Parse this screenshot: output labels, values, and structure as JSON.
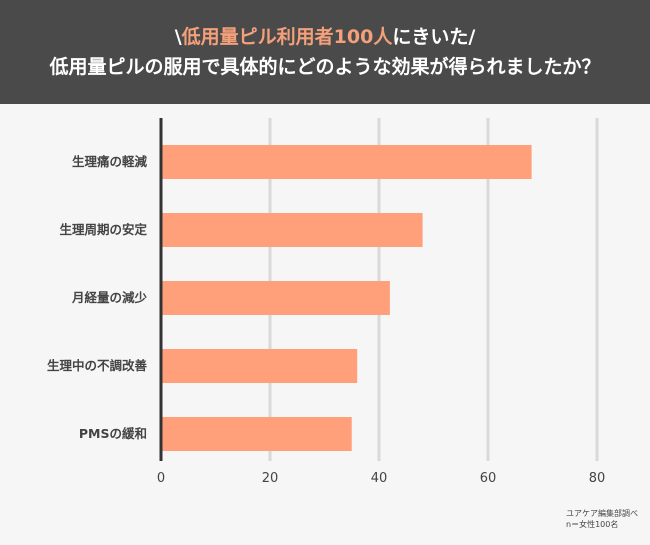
{
  "header": {
    "title_prefix": "\\",
    "title_accent": "低用量ピル利用者100人",
    "title_suffix": "にきいた/",
    "subtitle": "低用量ピルの服用で具体的にどのような効果が得られましたか？"
  },
  "colors": {
    "header_bg": "#4a4a4a",
    "accent": "#f4a07a",
    "bar": "#ffa07a",
    "axis": "#333333",
    "grid": "#d9d9d9",
    "background": "#f6f6f6"
  },
  "chart_data": {
    "type": "bar",
    "orientation": "horizontal",
    "categories": [
      "生理痛の軽減",
      "生理周期の安定",
      "月経量の減少",
      "生理中の不調改善",
      "PMSの緩和"
    ],
    "values": [
      68,
      48,
      42,
      36,
      35
    ],
    "xlim": [
      0,
      80
    ],
    "xticks": [
      "0",
      "20",
      "40",
      "60",
      "80"
    ],
    "grid": true
  },
  "footnote": {
    "source": "ユアケア編集部調べ",
    "sample": "n＝女性100名"
  }
}
